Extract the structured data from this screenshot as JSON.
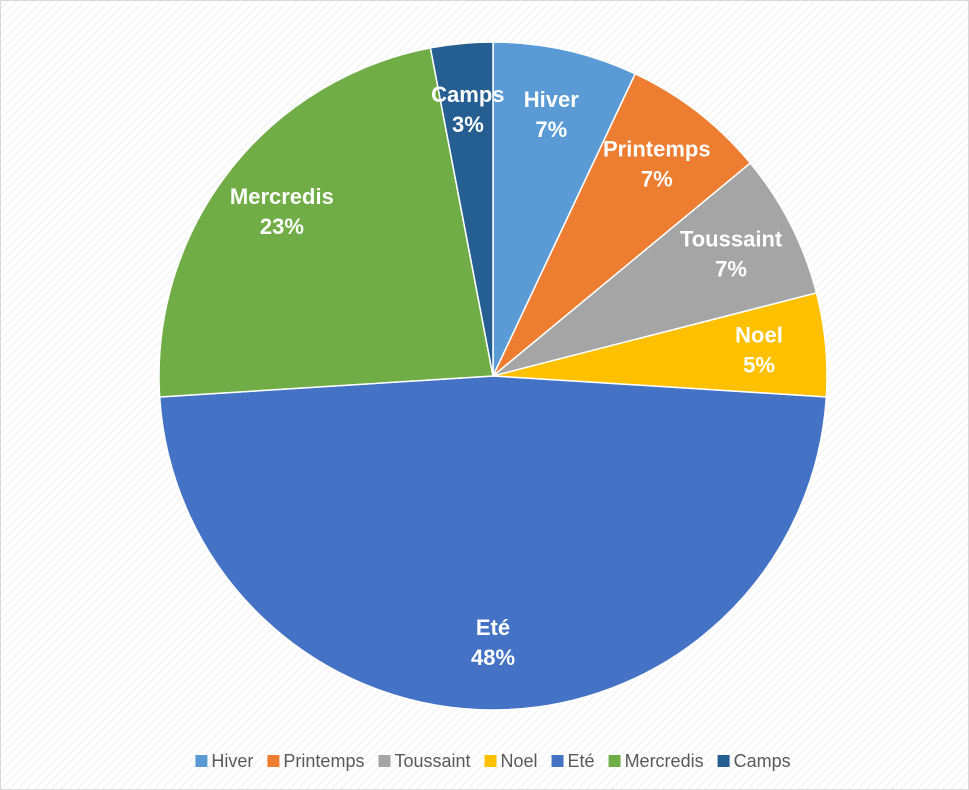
{
  "chart_data": {
    "type": "pie",
    "categories": [
      "Hiver",
      "Printemps",
      "Toussaint",
      "Noel",
      "Eté",
      "Mercredis",
      "Camps"
    ],
    "values": [
      7,
      7,
      7,
      5,
      48,
      23,
      3
    ],
    "value_labels": [
      "7%",
      "7%",
      "7%",
      "5%",
      "48%",
      "23%",
      "3%"
    ],
    "colors": [
      "#5b9bd5",
      "#ed7d31",
      "#a5a5a5",
      "#ffc000",
      "#4472c4",
      "#70ad47",
      "#255e91"
    ],
    "legend": "bottom"
  }
}
